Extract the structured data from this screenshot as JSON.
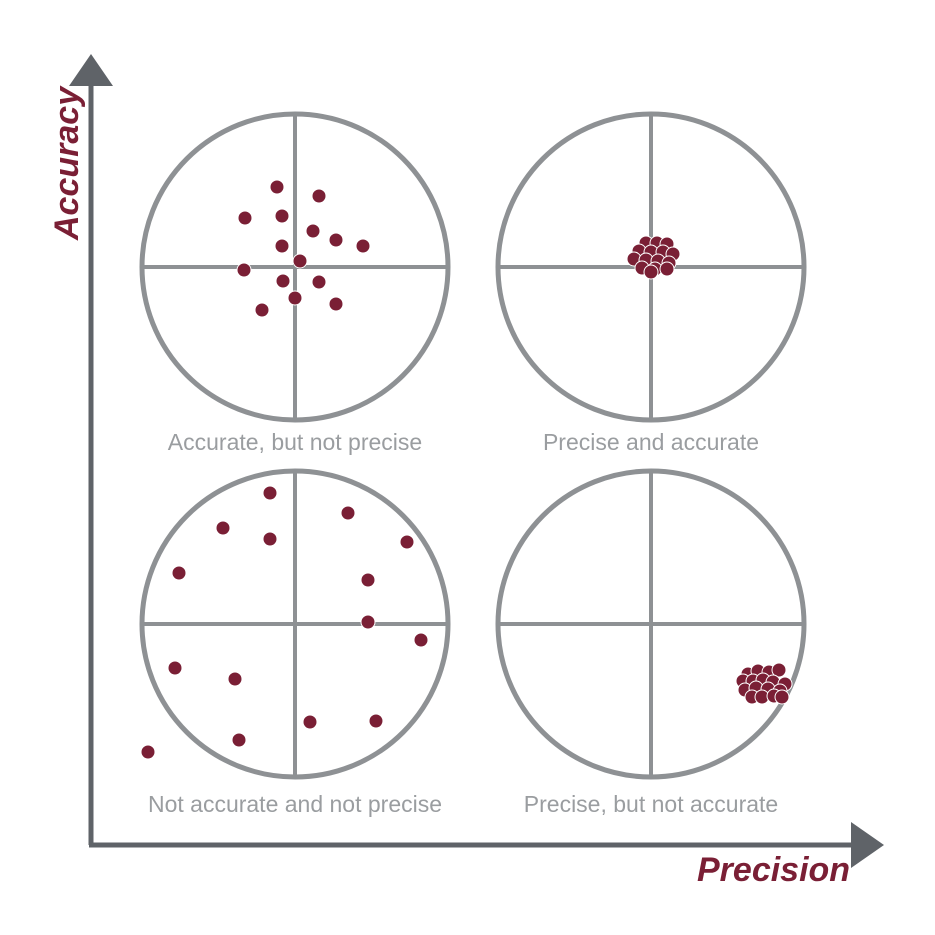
{
  "axes": {
    "y_label": "Accuracy",
    "x_label": "Precision"
  },
  "colors": {
    "axis": "#5f6368",
    "target": "#8e9194",
    "shot": "#7a1f35",
    "caption": "#9a9da0",
    "axis_label": "#7a1f35"
  },
  "targets": [
    {
      "caption": "Accurate, but not precise",
      "shots": [
        [
          -18,
          -80
        ],
        [
          24,
          -71
        ],
        [
          -50,
          -49
        ],
        [
          -13,
          -51
        ],
        [
          18,
          -36
        ],
        [
          41,
          -27
        ],
        [
          68,
          -21
        ],
        [
          -13,
          -21
        ],
        [
          5,
          -6
        ],
        [
          -51,
          3
        ],
        [
          -12,
          14
        ],
        [
          24,
          15
        ],
        [
          0,
          31
        ],
        [
          41,
          37
        ],
        [
          -33,
          43
        ]
      ]
    },
    {
      "caption": "Precise and accurate",
      "shots": [
        [
          -5,
          -24
        ],
        [
          6,
          -24
        ],
        [
          16,
          -23
        ],
        [
          -12,
          -16
        ],
        [
          0,
          -15
        ],
        [
          12,
          -15
        ],
        [
          22,
          -13
        ],
        [
          -17,
          -8
        ],
        [
          -5,
          -7
        ],
        [
          7,
          -6
        ],
        [
          18,
          -4
        ],
        [
          -9,
          1
        ],
        [
          4,
          2
        ],
        [
          16,
          2
        ],
        [
          0,
          5
        ]
      ]
    },
    {
      "caption": "Not accurate and not precise",
      "shots": [
        [
          -25,
          -131
        ],
        [
          -72,
          -96
        ],
        [
          -25,
          -85
        ],
        [
          53,
          -111
        ],
        [
          112,
          -82
        ],
        [
          -116,
          -51
        ],
        [
          73,
          -44
        ],
        [
          73,
          -2
        ],
        [
          126,
          16
        ],
        [
          -120,
          44
        ],
        [
          -60,
          55
        ],
        [
          15,
          98
        ],
        [
          81,
          97
        ],
        [
          -56,
          116
        ],
        [
          -147,
          128
        ]
      ]
    },
    {
      "caption": "Precise, but not accurate",
      "shots": [
        [
          97,
          50
        ],
        [
          107,
          47
        ],
        [
          118,
          48
        ],
        [
          128,
          46
        ],
        [
          92,
          57
        ],
        [
          102,
          57
        ],
        [
          112,
          56
        ],
        [
          122,
          58
        ],
        [
          134,
          60
        ],
        [
          94,
          66
        ],
        [
          105,
          64
        ],
        [
          117,
          65
        ],
        [
          129,
          67
        ],
        [
          101,
          73
        ],
        [
          111,
          73
        ],
        [
          123,
          72
        ],
        [
          131,
          73
        ]
      ]
    }
  ]
}
